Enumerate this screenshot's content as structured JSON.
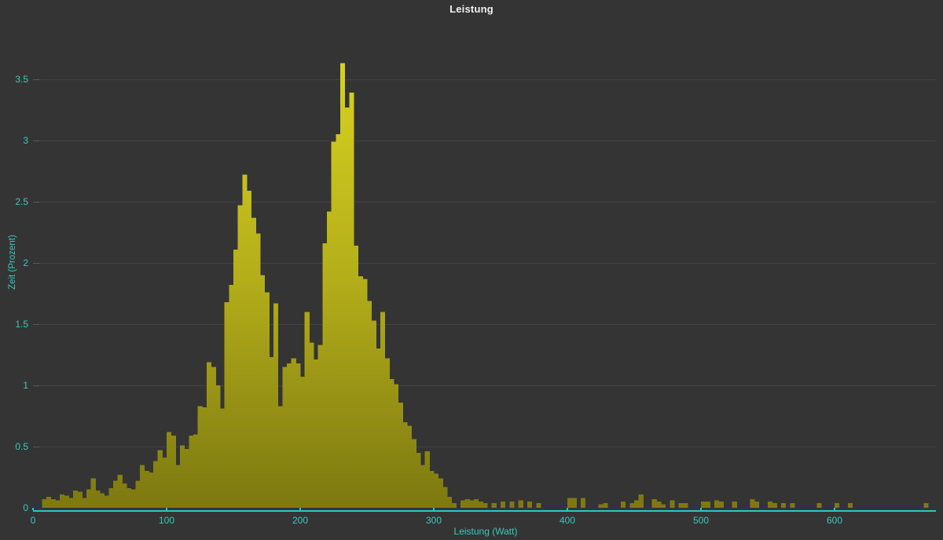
{
  "title": "Leistung",
  "colors": {
    "background": "#343434",
    "bar_top": "#d9d321",
    "bar_mid": "#b3ad1a",
    "bar_bottom": "#7c7810",
    "axis_line": "#2fc7bd",
    "tick_label": "#3bc8be",
    "title_text": "#f0f0f0",
    "gridline": "#434343",
    "zero_line": "#28325a"
  },
  "chart_data": {
    "type": "bar",
    "title": "Leistung",
    "xlabel": "Leistung (Watt)",
    "ylabel": "Zeit (Prozent)",
    "xlim": [
      0,
      678
    ],
    "ylim": [
      0,
      3.75
    ],
    "grid": "horizontal",
    "legend": "none",
    "x_tick_labels": [
      "0",
      "100",
      "200",
      "300",
      "400",
      "500",
      "600"
    ],
    "y_tick_labels": [
      "0",
      "0.5",
      "1",
      "1.5",
      "2",
      "2.5",
      "3",
      "3.5"
    ],
    "bin_width_watt": 3.33,
    "bins": [
      [
        6.7,
        0.07
      ],
      [
        10,
        0.09
      ],
      [
        13.3,
        0.07
      ],
      [
        16.7,
        0.06
      ],
      [
        20,
        0.11
      ],
      [
        23.3,
        0.1
      ],
      [
        26.7,
        0.08
      ],
      [
        30,
        0.14
      ],
      [
        33.3,
        0.13
      ],
      [
        36.7,
        0.08
      ],
      [
        40,
        0.15
      ],
      [
        43.3,
        0.24
      ],
      [
        46.7,
        0.14
      ],
      [
        50,
        0.12
      ],
      [
        53.3,
        0.1
      ],
      [
        56.7,
        0.16
      ],
      [
        60,
        0.22
      ],
      [
        63.3,
        0.27
      ],
      [
        66.7,
        0.2
      ],
      [
        70,
        0.16
      ],
      [
        73.3,
        0.15
      ],
      [
        76.7,
        0.22
      ],
      [
        80,
        0.35
      ],
      [
        83.3,
        0.3
      ],
      [
        86.7,
        0.29
      ],
      [
        90,
        0.38
      ],
      [
        93.3,
        0.47
      ],
      [
        96.7,
        0.41
      ],
      [
        100,
        0.62
      ],
      [
        103.3,
        0.59
      ],
      [
        106.7,
        0.35
      ],
      [
        110,
        0.51
      ],
      [
        113.3,
        0.48
      ],
      [
        116.7,
        0.59
      ],
      [
        120,
        0.6
      ],
      [
        123.3,
        0.83
      ],
      [
        126.7,
        0.82
      ],
      [
        130,
        1.19
      ],
      [
        133.3,
        1.15
      ],
      [
        136.7,
        1.0
      ],
      [
        140,
        0.81
      ],
      [
        143.3,
        1.68
      ],
      [
        146.7,
        1.82
      ],
      [
        150,
        2.11
      ],
      [
        153.3,
        2.47
      ],
      [
        156.7,
        2.72
      ],
      [
        160,
        2.59
      ],
      [
        163.3,
        2.37
      ],
      [
        166.7,
        2.24
      ],
      [
        170,
        1.9
      ],
      [
        173.3,
        1.76
      ],
      [
        176.7,
        1.23
      ],
      [
        180,
        1.67
      ],
      [
        183.3,
        0.83
      ],
      [
        186.7,
        1.15
      ],
      [
        190,
        1.18
      ],
      [
        193.3,
        1.22
      ],
      [
        196.7,
        1.18
      ],
      [
        200,
        1.07
      ],
      [
        203.3,
        1.6
      ],
      [
        206.7,
        1.35
      ],
      [
        210,
        1.21
      ],
      [
        213.3,
        1.33
      ],
      [
        216.7,
        2.16
      ],
      [
        220,
        2.42
      ],
      [
        223.3,
        2.99
      ],
      [
        226.7,
        3.05
      ],
      [
        230,
        3.63
      ],
      [
        233.3,
        3.27
      ],
      [
        236.7,
        3.39
      ],
      [
        240,
        2.14
      ],
      [
        243.3,
        1.89
      ],
      [
        246.7,
        1.87
      ],
      [
        250,
        1.69
      ],
      [
        253.3,
        1.53
      ],
      [
        256.7,
        1.3
      ],
      [
        260,
        1.6
      ],
      [
        263.3,
        1.22
      ],
      [
        266.7,
        1.05
      ],
      [
        270,
        1.01
      ],
      [
        273.3,
        0.86
      ],
      [
        276.7,
        0.7
      ],
      [
        280,
        0.67
      ],
      [
        283.3,
        0.56
      ],
      [
        286.7,
        0.45
      ],
      [
        290,
        0.35
      ],
      [
        293.3,
        0.46
      ],
      [
        296.7,
        0.3
      ],
      [
        300,
        0.28
      ],
      [
        303.3,
        0.24
      ],
      [
        306.7,
        0.17
      ],
      [
        310,
        0.09
      ],
      [
        313.3,
        0.04
      ],
      [
        320,
        0.06
      ],
      [
        323.3,
        0.07
      ],
      [
        326.7,
        0.06
      ],
      [
        330,
        0.07
      ],
      [
        333.3,
        0.05
      ],
      [
        336.7,
        0.04
      ],
      [
        343.3,
        0.04
      ],
      [
        350,
        0.05
      ],
      [
        356.7,
        0.05
      ],
      [
        363.3,
        0.06
      ],
      [
        370,
        0.05
      ],
      [
        376.7,
        0.04
      ],
      [
        400,
        0.08
      ],
      [
        403.3,
        0.08
      ],
      [
        410,
        0.08
      ],
      [
        423.3,
        0.03
      ],
      [
        426.7,
        0.04
      ],
      [
        440,
        0.05
      ],
      [
        446.7,
        0.04
      ],
      [
        450,
        0.06
      ],
      [
        453.3,
        0.11
      ],
      [
        463.3,
        0.07
      ],
      [
        466.7,
        0.05
      ],
      [
        470,
        0.03
      ],
      [
        476.7,
        0.06
      ],
      [
        483.3,
        0.04
      ],
      [
        486.7,
        0.04
      ],
      [
        500,
        0.05
      ],
      [
        503.3,
        0.05
      ],
      [
        510,
        0.06
      ],
      [
        513.3,
        0.05
      ],
      [
        523.3,
        0.05
      ],
      [
        536.7,
        0.07
      ],
      [
        540,
        0.05
      ],
      [
        550,
        0.05
      ],
      [
        553.3,
        0.04
      ],
      [
        560,
        0.04
      ],
      [
        566.7,
        0.04
      ],
      [
        586.7,
        0.04
      ],
      [
        600,
        0.04
      ],
      [
        610,
        0.04
      ],
      [
        666.7,
        0.04
      ]
    ]
  }
}
